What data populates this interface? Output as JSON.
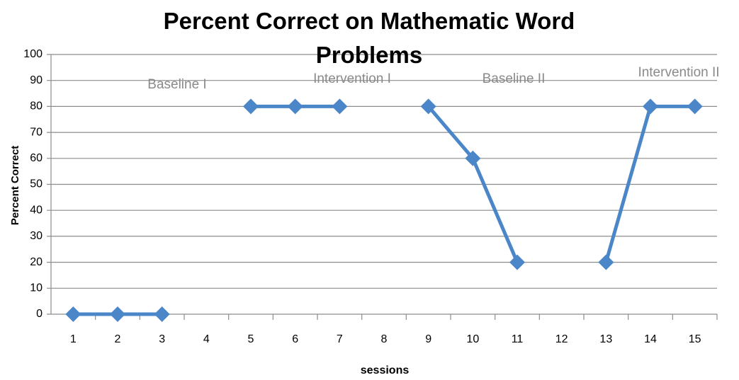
{
  "chart_data": {
    "type": "line",
    "title": "Percent Correct on Mathematic Word Problems",
    "x_label": "sessions",
    "y_label": "Percent Correct",
    "categories": [
      "1",
      "2",
      "3",
      "4",
      "5",
      "6",
      "7",
      "8",
      "9",
      "10",
      "11",
      "12",
      "13",
      "14",
      "15"
    ],
    "series": [
      {
        "name": "Percent Correct",
        "color": "#4a86c8",
        "values": [
          0,
          0,
          0,
          null,
          80,
          80,
          80,
          null,
          80,
          60,
          20,
          null,
          20,
          80,
          80
        ]
      }
    ],
    "annotations": [
      "Baseline I",
      "Intervention I",
      "Baseline II",
      "Intervention II"
    ],
    "ylim": [
      0,
      100
    ],
    "yticks": [
      0,
      10,
      20,
      30,
      40,
      50,
      60,
      70,
      80,
      90,
      100
    ],
    "grid": true,
    "legend": false
  }
}
